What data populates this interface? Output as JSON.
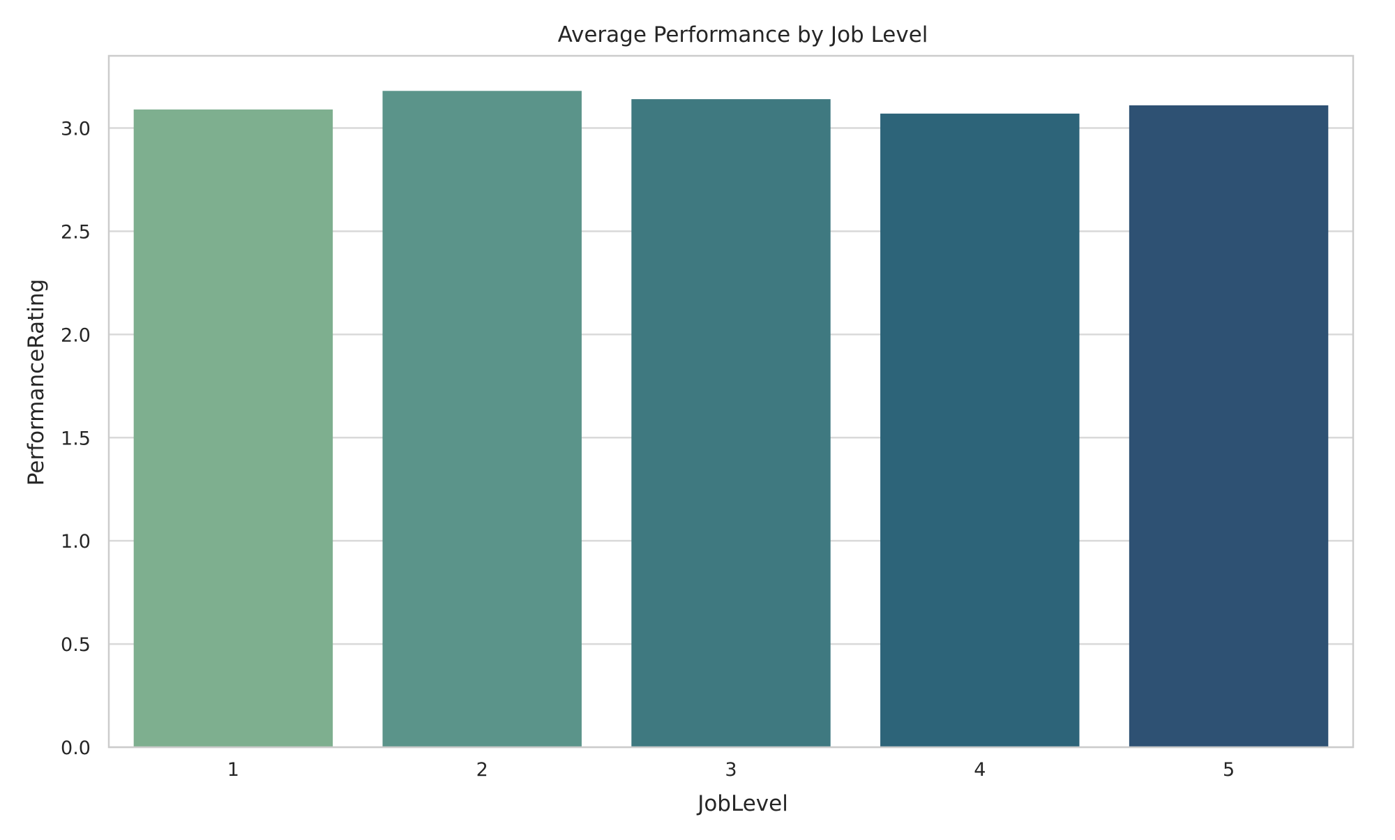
{
  "chart_data": {
    "type": "bar",
    "title": "Average Performance by Job Level",
    "xlabel": "JobLevel",
    "ylabel": "PerformanceRating",
    "categories": [
      "1",
      "2",
      "3",
      "4",
      "5"
    ],
    "values": [
      3.09,
      3.18,
      3.14,
      3.07,
      3.11
    ],
    "colors": [
      "#7eaf8f",
      "#5b948a",
      "#3f7980",
      "#2d6479",
      "#2e5173"
    ],
    "ylim": [
      0,
      3.35
    ],
    "yticks": [
      0.0,
      0.5,
      1.0,
      1.5,
      2.0,
      2.5,
      3.0
    ],
    "ytick_labels": [
      "0.0",
      "0.5",
      "1.0",
      "1.5",
      "2.0",
      "2.5",
      "3.0"
    ],
    "grid": "horizontal",
    "legend": "none",
    "grid_color": "#d9d9d9",
    "spine_color": "#cccccc"
  }
}
